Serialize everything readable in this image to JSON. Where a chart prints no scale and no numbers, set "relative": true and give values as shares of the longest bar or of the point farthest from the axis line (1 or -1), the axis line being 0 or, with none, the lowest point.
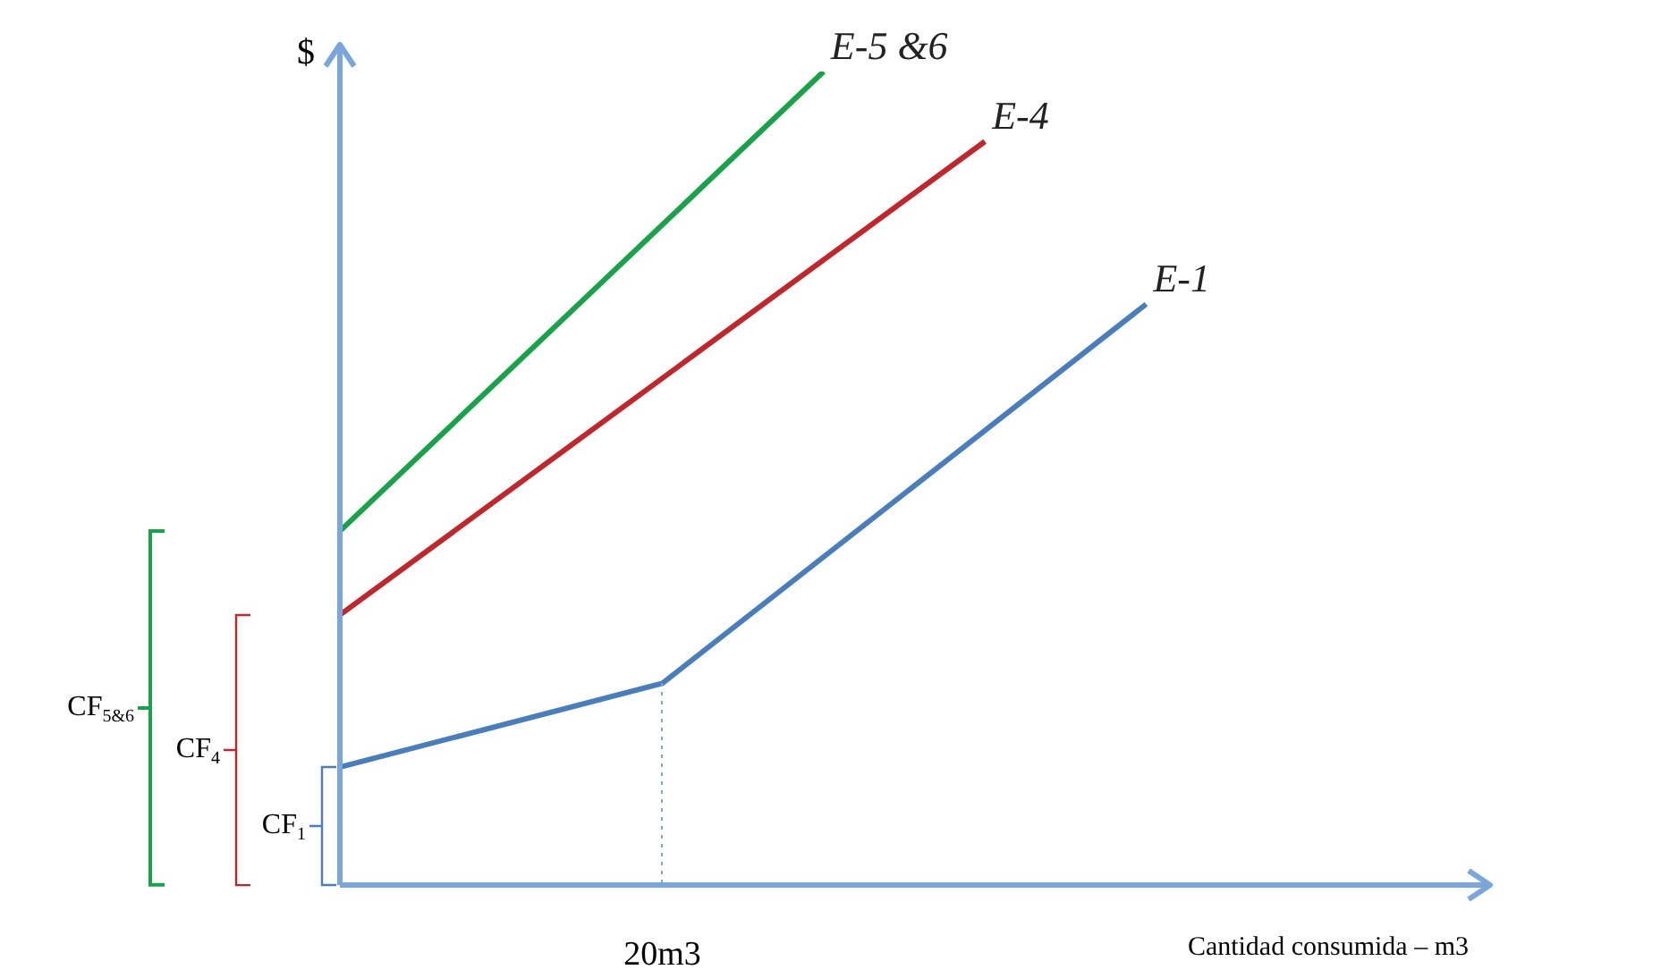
{
  "chart_data": {
    "type": "line",
    "relative": true,
    "ylabel": "$",
    "xlabel": "Cantidad consumida – m3",
    "marker": "none",
    "legend": false,
    "categories": [
      null,
      null,
      null,
      null,
      null,
      null,
      null,
      null
    ],
    "series": [
      {
        "name": "E-5 &6",
        "color": "#1aa24a",
        "values": [
          0.435,
          null,
          null,
          1,
          null,
          null,
          null,
          null
        ]
      },
      {
        "name": "E-4",
        "color": "#c0272d",
        "values": [
          0.332,
          null,
          null,
          null,
          0.914,
          null,
          null,
          null
        ]
      },
      {
        "name": "E-1",
        "color": "#4a7ebb",
        "values": [
          0.145,
          null,
          0.248,
          null,
          null,
          0.714,
          null,
          null
        ]
      }
    ],
    "annotations": [
      "CF$_{5&6}$",
      "CF$_{4}$",
      "CF$_{1}$",
      "20m3"
    ]
  }
}
